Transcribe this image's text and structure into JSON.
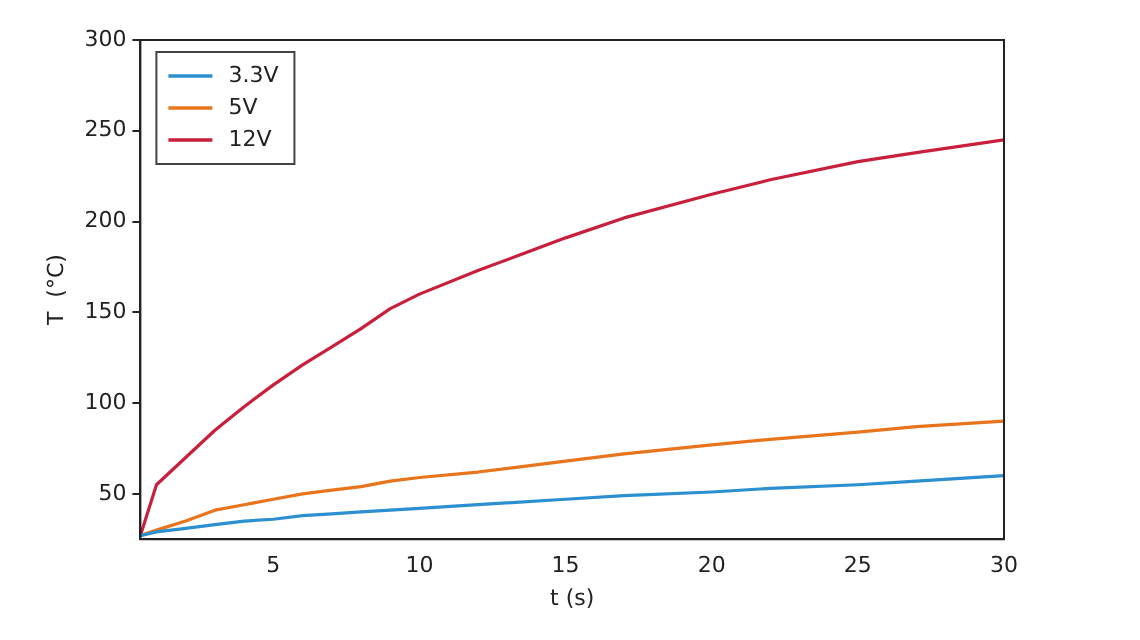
{
  "chart_data": {
    "type": "line",
    "xlabel": "t (s)",
    "ylabel": "T  (°C)",
    "x": [
      0.45,
      1,
      2,
      3,
      4,
      5,
      6,
      7,
      8,
      9,
      10,
      12,
      15,
      17,
      20,
      22,
      25,
      27,
      30
    ],
    "series": [
      {
        "name": "3.3V",
        "color": "#2b8fd0",
        "values": [
          27,
          29,
          31,
          33,
          35,
          36,
          38,
          39,
          40,
          41,
          42,
          44,
          47,
          49,
          51,
          53,
          55,
          57,
          60
        ]
      },
      {
        "name": "5V",
        "color": "#e8741c",
        "values": [
          27,
          30,
          35,
          41,
          44,
          47,
          50,
          52,
          54,
          57,
          59,
          62,
          68,
          72,
          77,
          80,
          84,
          87,
          90
        ]
      },
      {
        "name": "12V",
        "color": "#c8203c",
        "values": [
          27,
          55,
          70,
          85,
          98,
          110,
          121,
          131,
          141,
          152,
          160,
          173,
          191,
          202,
          215,
          223,
          233,
          238,
          245
        ]
      }
    ],
    "xlim": [
      0.45,
      30
    ],
    "xticks": [
      5,
      10,
      15,
      20,
      25,
      30
    ],
    "ylim": [
      25,
      300
    ],
    "yticks": [
      50,
      100,
      150,
      200,
      250,
      300
    ],
    "grid": false,
    "legend": "top left",
    "marker": "none",
    "line_style": "solid"
  }
}
